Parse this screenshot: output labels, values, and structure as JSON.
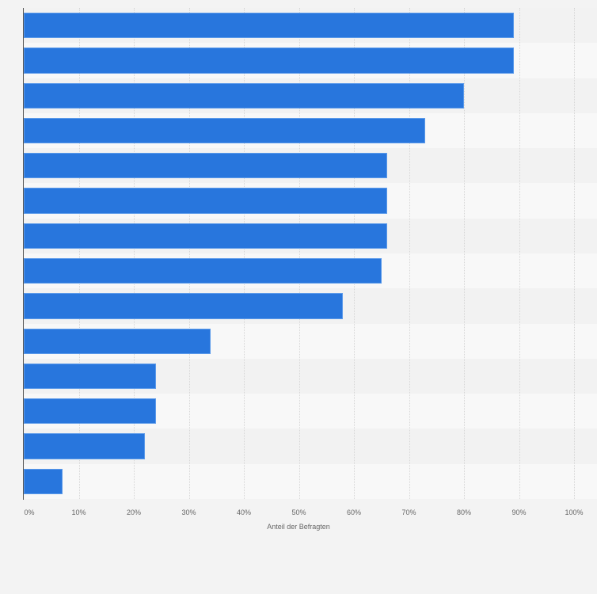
{
  "chart_data": {
    "type": "bar",
    "orientation": "horizontal",
    "title": "",
    "xlabel": "Anteil der Befragten",
    "ylabel": "",
    "xlim": [
      0,
      100
    ],
    "grid": true,
    "categories": [
      "",
      "",
      "",
      "",
      "",
      "",
      "",
      "",
      "",
      "",
      "",
      "",
      "",
      ""
    ],
    "values": [
      89,
      89,
      80,
      73,
      66,
      66,
      66,
      65,
      58,
      34,
      24,
      24,
      22,
      7
    ],
    "tick_labels": [
      "0%",
      "10%",
      "20%",
      "30%",
      "40%",
      "50%",
      "60%",
      "70%",
      "80%",
      "90%",
      "100%"
    ],
    "bar_color": "#2876dd"
  }
}
